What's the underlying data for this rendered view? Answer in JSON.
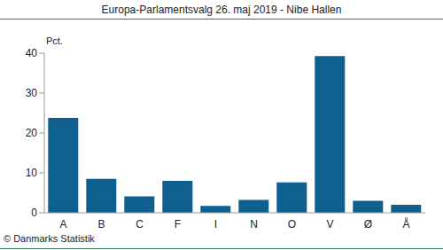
{
  "chart_data": {
    "type": "bar",
    "title": "Europa-Parlamentsvalg 26. maj 2019 - Nibe Hallen",
    "y_label": "Pct.",
    "footer": "© Danmarks Statistik",
    "categories": [
      "A",
      "B",
      "C",
      "F",
      "I",
      "N",
      "O",
      "V",
      "Ø",
      "Å"
    ],
    "values": [
      23.8,
      8.5,
      4.1,
      8.0,
      1.7,
      3.2,
      7.6,
      39.3,
      3.0,
      2.0
    ],
    "color": "#0f5f8f",
    "ylim": [
      0,
      40
    ],
    "yticks": [
      0,
      10,
      20,
      30,
      40
    ],
    "grid": false
  }
}
